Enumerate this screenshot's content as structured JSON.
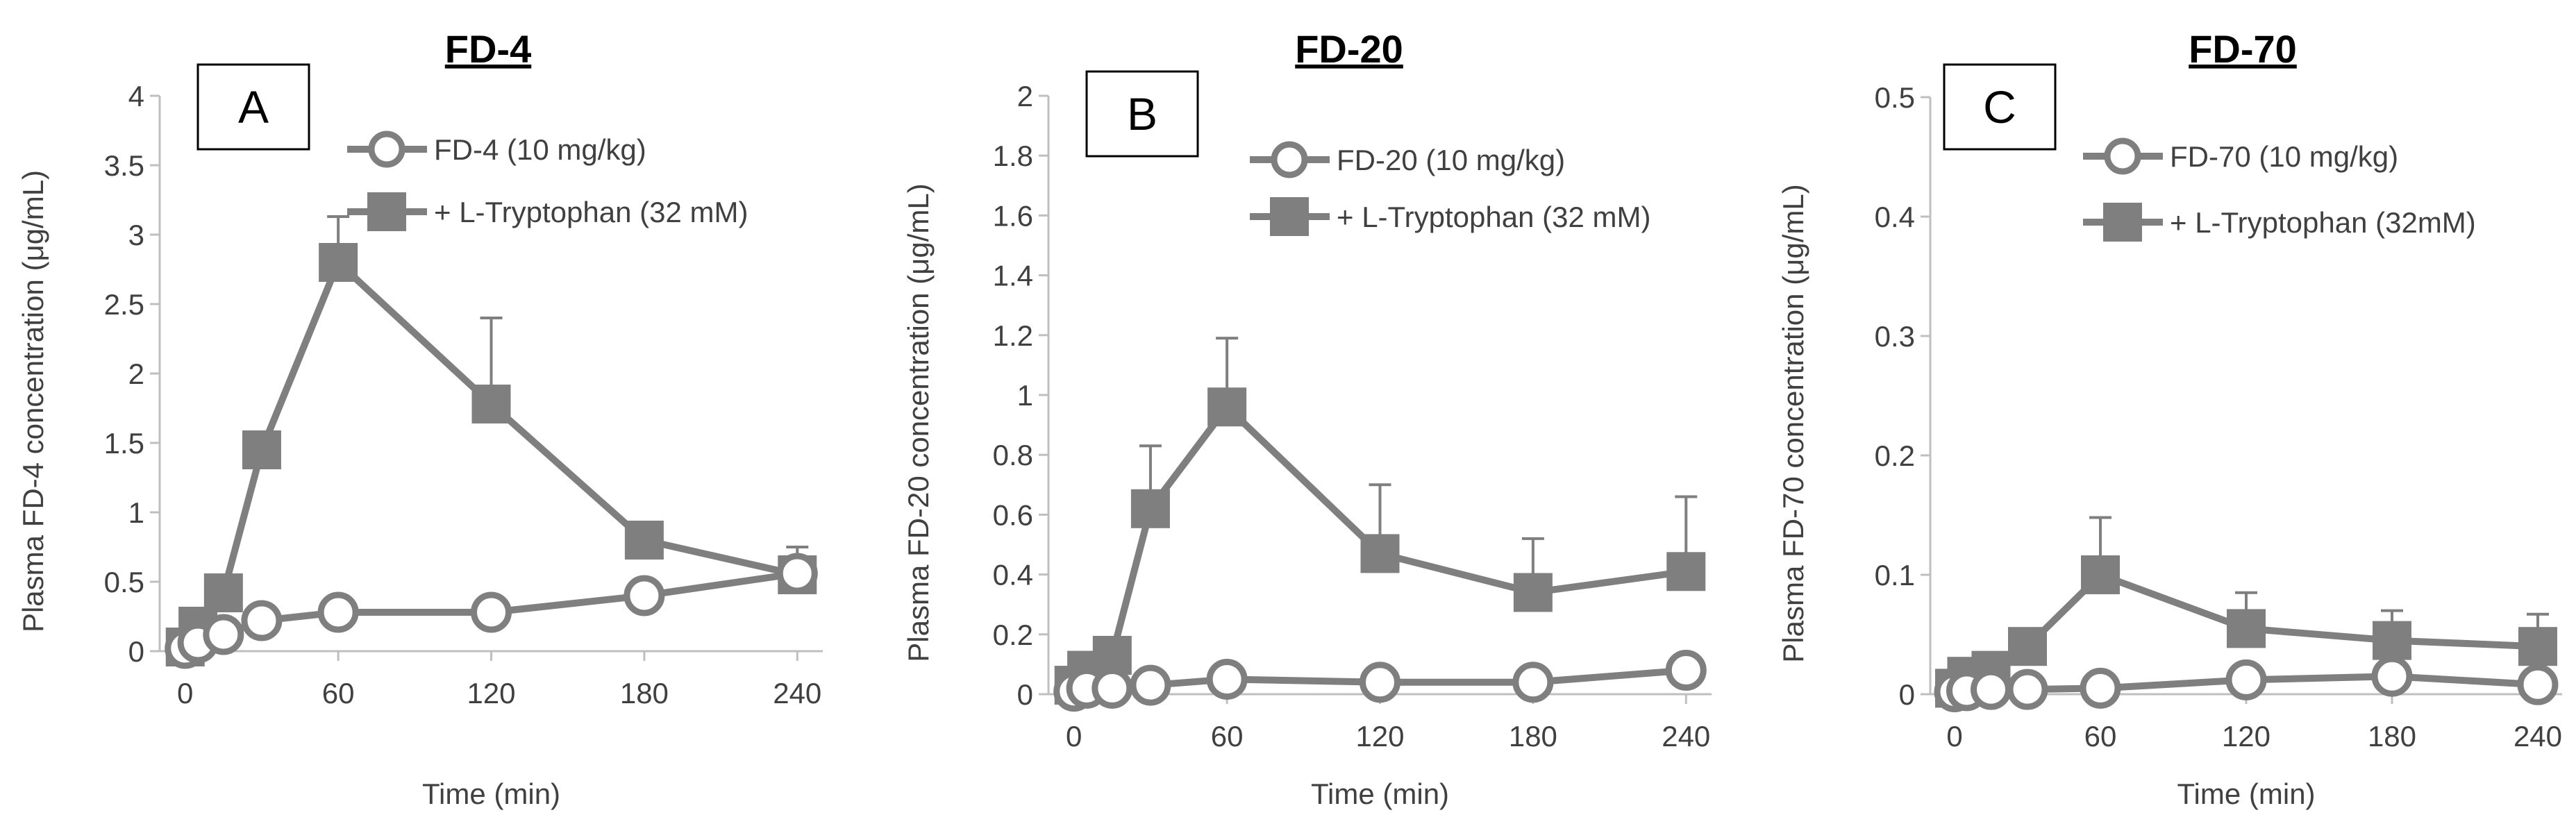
{
  "colors": {
    "line": "#7f7f7f",
    "axis": "#bfbfbf",
    "text": "#404040",
    "marker_fill_open": "#ffffff"
  },
  "chart_data": [
    {
      "type": "line",
      "panel": "A",
      "title": "FD-4",
      "xlabel": "Time (min)",
      "ylabel": "Plasma FD-4 concentration  (μg/mL)",
      "x_ticks": [
        0,
        60,
        120,
        180,
        240
      ],
      "x_tick_labels": [
        "0",
        "60",
        "120",
        "180",
        "240"
      ],
      "y_ticks": [
        0,
        0.5,
        1,
        1.5,
        2,
        2.5,
        3,
        3.5,
        4
      ],
      "y_tick_labels": [
        "0",
        "0.5",
        "1",
        "1.5",
        "2",
        "2.5",
        "3",
        "3.5",
        "4"
      ],
      "ylim": [
        0,
        4
      ],
      "xlim": [
        -10,
        250
      ],
      "series": [
        {
          "name": "FD-4 (10 mg/kg)",
          "marker": "circle-open",
          "x": [
            0,
            5,
            15,
            30,
            60,
            120,
            180,
            240
          ],
          "values": [
            0.02,
            0.06,
            0.12,
            0.22,
            0.28,
            0.28,
            0.4,
            0.56
          ],
          "errors": [
            0,
            0,
            0,
            0,
            0,
            0,
            0,
            0
          ]
        },
        {
          "name": "+ L-Tryptophan (32 mM)",
          "marker": "square-filled",
          "x": [
            0,
            5,
            15,
            30,
            60,
            120,
            180,
            240
          ],
          "values": [
            0.03,
            0.18,
            0.42,
            1.45,
            2.8,
            1.78,
            0.8,
            0.55
          ],
          "errors": [
            0,
            0,
            0,
            0,
            0.33,
            0.62,
            0,
            0.2
          ]
        }
      ]
    },
    {
      "type": "line",
      "panel": "B",
      "title": "FD-20",
      "xlabel": "Time (min)",
      "ylabel": "Plasma FD-20 concentration  (μg/mL)",
      "x_ticks": [
        0,
        60,
        120,
        180,
        240
      ],
      "x_tick_labels": [
        "0",
        "60",
        "120",
        "180",
        "240"
      ],
      "y_ticks": [
        0,
        0.2,
        0.4,
        0.6,
        0.8,
        1,
        1.2,
        1.4,
        1.6,
        1.8,
        2
      ],
      "y_tick_labels": [
        "0",
        "0.2",
        "0.4",
        "0.6",
        "0.8",
        "1",
        "1.2",
        "1.4",
        "1.6",
        "1.8",
        "2"
      ],
      "ylim": [
        0,
        2
      ],
      "xlim": [
        -10,
        250
      ],
      "series": [
        {
          "name": "FD-20 (10 mg/kg)",
          "marker": "circle-open",
          "x": [
            0,
            5,
            15,
            30,
            60,
            120,
            180,
            240
          ],
          "values": [
            0.01,
            0.02,
            0.02,
            0.03,
            0.05,
            0.04,
            0.04,
            0.08
          ],
          "errors": [
            0,
            0,
            0,
            0,
            0,
            0,
            0,
            0
          ]
        },
        {
          "name": "+ L-Tryptophan (32 mM)",
          "marker": "square-filled",
          "x": [
            0,
            5,
            15,
            30,
            60,
            120,
            180,
            240
          ],
          "values": [
            0.03,
            0.08,
            0.13,
            0.62,
            0.96,
            0.47,
            0.34,
            0.41
          ],
          "errors": [
            0,
            0,
            0,
            0.21,
            0.23,
            0.23,
            0.18,
            0.25
          ]
        }
      ]
    },
    {
      "type": "line",
      "panel": "C",
      "title": "FD-70",
      "xlabel": "Time (min)",
      "ylabel": "Plasma FD-70 concentration  (μg/mL)",
      "x_ticks": [
        0,
        60,
        120,
        180,
        240
      ],
      "x_tick_labels": [
        "0",
        "60",
        "120",
        "180",
        "240"
      ],
      "y_ticks": [
        0,
        0.1,
        0.2,
        0.3,
        0.4,
        0.5
      ],
      "y_tick_labels": [
        "0",
        "0.1",
        "0.2",
        "0.3",
        "0.4",
        "0.5"
      ],
      "ylim": [
        0,
        0.5
      ],
      "xlim": [
        -10,
        250
      ],
      "series": [
        {
          "name": "FD-70 (10 mg/kg)",
          "marker": "circle-open",
          "x": [
            0,
            5,
            15,
            30,
            60,
            120,
            180,
            240
          ],
          "values": [
            0.002,
            0.003,
            0.004,
            0.004,
            0.005,
            0.012,
            0.015,
            0.008
          ],
          "errors": [
            0,
            0,
            0,
            0,
            0,
            0,
            0,
            0
          ]
        },
        {
          "name": "+ L-Tryptophan (32mM)",
          "marker": "square-filled",
          "x": [
            0,
            5,
            15,
            30,
            60,
            120,
            180,
            240
          ],
          "values": [
            0.005,
            0.015,
            0.02,
            0.04,
            0.1,
            0.055,
            0.045,
            0.04
          ],
          "errors": [
            0,
            0,
            0,
            0,
            0.048,
            0.03,
            0.025,
            0.027
          ]
        }
      ]
    }
  ]
}
